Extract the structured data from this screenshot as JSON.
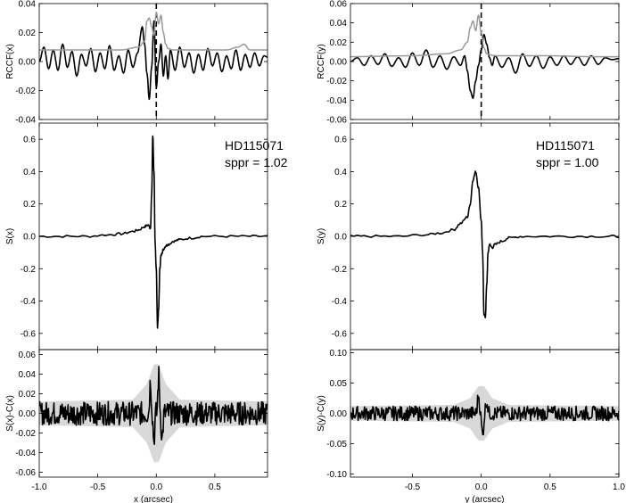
{
  "chart_data": [
    {
      "type": "line",
      "panel": "left-top",
      "ylabel": "RCCF(x)",
      "ylim": [
        -0.04,
        0.04
      ],
      "yticks": [
        "0.04",
        "0.02",
        "0.00",
        "-0.02",
        "-0.04"
      ],
      "xlim": [
        -1.0,
        0.95
      ],
      "vline_x": 0.0,
      "series": [
        {
          "values_kind": "black",
          "color": "#000000",
          "x": [
            -1.0,
            -0.96,
            -0.92,
            -0.88,
            -0.84,
            -0.8,
            -0.76,
            -0.72,
            -0.68,
            -0.64,
            -0.6,
            -0.56,
            -0.52,
            -0.48,
            -0.44,
            -0.4,
            -0.36,
            -0.32,
            -0.28,
            -0.24,
            -0.2,
            -0.16,
            -0.12,
            -0.1,
            -0.08,
            -0.06,
            -0.04,
            -0.02,
            0.0,
            0.02,
            0.04,
            0.06,
            0.08,
            0.1,
            0.12,
            0.16,
            0.2,
            0.24,
            0.28,
            0.32,
            0.36,
            0.4,
            0.44,
            0.48,
            0.52,
            0.56,
            0.6,
            0.64,
            0.68,
            0.72,
            0.76,
            0.8,
            0.84,
            0.88,
            0.92,
            0.95
          ],
          "y": [
            0.0,
            0.01,
            -0.005,
            0.008,
            -0.006,
            0.012,
            -0.004,
            0.007,
            -0.01,
            0.005,
            -0.003,
            0.009,
            -0.007,
            0.006,
            -0.005,
            0.011,
            -0.006,
            0.004,
            -0.008,
            0.008,
            -0.004,
            0.006,
            0.024,
            0.012,
            -0.008,
            -0.026,
            -0.004,
            0.028,
            -0.018,
            0.0,
            0.012,
            -0.01,
            0.004,
            -0.012,
            0.008,
            -0.006,
            0.01,
            -0.004,
            0.006,
            -0.008,
            0.005,
            -0.006,
            0.009,
            -0.003,
            0.006,
            -0.007,
            0.004,
            -0.005,
            0.008,
            -0.006,
            0.005,
            -0.004,
            0.006,
            -0.003,
            0.004,
            0.003
          ]
        },
        {
          "values_kind": "gray",
          "color": "#9a9a9a",
          "x": [
            -1.0,
            -0.6,
            -0.3,
            -0.15,
            -0.1,
            -0.08,
            -0.06,
            -0.04,
            -0.02,
            0.0,
            0.02,
            0.04,
            0.06,
            0.08,
            0.1,
            0.14,
            0.2,
            0.4,
            0.6,
            0.7,
            0.75,
            0.8,
            0.95
          ],
          "y": [
            0.008,
            0.008,
            0.008,
            0.01,
            0.014,
            0.028,
            0.03,
            0.024,
            0.018,
            0.034,
            0.026,
            0.032,
            0.02,
            0.012,
            0.009,
            0.008,
            0.008,
            0.008,
            0.008,
            0.01,
            0.012,
            0.008,
            0.008
          ]
        }
      ]
    },
    {
      "type": "line",
      "panel": "right-top",
      "ylabel": "RCCF(y)",
      "ylim": [
        -0.06,
        0.06
      ],
      "yticks": [
        "0.06",
        "0.04",
        "0.02",
        "0.00",
        "-0.02",
        "-0.04",
        "-0.06"
      ],
      "xlim": [
        -0.95,
        1.0
      ],
      "vline_x": 0.0,
      "series": [
        {
          "values_kind": "black",
          "color": "#000000",
          "x": [
            -0.95,
            -0.9,
            -0.85,
            -0.8,
            -0.75,
            -0.7,
            -0.65,
            -0.6,
            -0.55,
            -0.5,
            -0.45,
            -0.4,
            -0.35,
            -0.3,
            -0.25,
            -0.2,
            -0.15,
            -0.12,
            -0.1,
            -0.08,
            -0.06,
            -0.04,
            -0.02,
            0.0,
            0.02,
            0.04,
            0.06,
            0.08,
            0.1,
            0.15,
            0.2,
            0.25,
            0.3,
            0.35,
            0.4,
            0.45,
            0.5,
            0.55,
            0.6,
            0.65,
            0.7,
            0.75,
            0.8,
            0.85,
            0.9,
            0.95,
            1.0
          ],
          "y": [
            0.0,
            0.004,
            -0.004,
            0.006,
            -0.003,
            0.008,
            -0.005,
            0.004,
            -0.006,
            0.009,
            -0.004,
            0.012,
            -0.006,
            0.006,
            -0.008,
            0.005,
            -0.004,
            0.006,
            -0.01,
            -0.03,
            -0.038,
            -0.02,
            -0.004,
            0.012,
            0.028,
            0.018,
            0.004,
            -0.004,
            0.006,
            -0.006,
            0.004,
            -0.012,
            0.008,
            -0.005,
            0.006,
            -0.007,
            0.005,
            -0.004,
            0.006,
            -0.003,
            0.005,
            -0.004,
            0.006,
            -0.003,
            0.004,
            0.002,
            0.003
          ]
        },
        {
          "values_kind": "gray",
          "color": "#9a9a9a",
          "x": [
            -0.95,
            -0.5,
            -0.25,
            -0.15,
            -0.1,
            -0.08,
            -0.06,
            -0.04,
            -0.02,
            0.0,
            0.02,
            0.04,
            0.06,
            0.1,
            0.2,
            0.5,
            0.8,
            1.0
          ],
          "y": [
            0.005,
            0.006,
            0.008,
            0.012,
            0.02,
            0.035,
            0.042,
            0.032,
            0.048,
            0.03,
            0.014,
            0.008,
            0.007,
            0.006,
            0.006,
            0.006,
            0.005,
            0.005
          ]
        }
      ]
    },
    {
      "type": "line",
      "panel": "left-middle",
      "ylabel": "S(x)",
      "annotation_lines": [
        "HD115071",
        "sppr = 1.02"
      ],
      "ylim": [
        -0.7,
        0.7
      ],
      "yticks": [
        "0.6",
        "0.4",
        "0.2",
        "0.0",
        "-0.2",
        "-0.4",
        "-0.6"
      ],
      "xlim": [
        -1.0,
        0.95
      ],
      "series": [
        {
          "color": "#000000",
          "x": [
            -1.0,
            -0.8,
            -0.6,
            -0.4,
            -0.3,
            -0.2,
            -0.15,
            -0.1,
            -0.07,
            -0.05,
            -0.04,
            -0.03,
            -0.02,
            -0.01,
            0.0,
            0.01,
            0.02,
            0.03,
            0.04,
            0.05,
            0.06,
            0.08,
            0.1,
            0.15,
            0.2,
            0.3,
            0.4,
            0.6,
            0.8,
            0.95
          ],
          "y": [
            0.0,
            0.0,
            0.0,
            0.01,
            0.015,
            0.03,
            0.04,
            0.06,
            0.07,
            0.05,
            0.25,
            0.62,
            0.4,
            -0.05,
            -0.2,
            -0.56,
            -0.45,
            -0.2,
            -0.12,
            -0.1,
            -0.08,
            -0.06,
            -0.05,
            -0.03,
            -0.02,
            -0.01,
            0.0,
            0.0,
            0.0,
            0.0
          ]
        }
      ]
    },
    {
      "type": "line",
      "panel": "right-middle",
      "ylabel": "S(y)",
      "annotation_lines": [
        "HD115071",
        "sppr = 1.00"
      ],
      "ylim": [
        -0.7,
        0.7
      ],
      "yticks": [
        "0.6",
        "0.4",
        "0.2",
        "0.0",
        "-0.2",
        "-0.4",
        "-0.6"
      ],
      "xlim": [
        -0.95,
        1.0
      ],
      "series": [
        {
          "color": "#000000",
          "x": [
            -0.95,
            -0.8,
            -0.6,
            -0.4,
            -0.3,
            -0.2,
            -0.15,
            -0.1,
            -0.08,
            -0.06,
            -0.04,
            -0.02,
            0.0,
            0.01,
            0.02,
            0.03,
            0.04,
            0.05,
            0.06,
            0.08,
            0.1,
            0.15,
            0.2,
            0.3,
            0.5,
            0.7,
            0.9,
            1.0
          ],
          "y": [
            0.0,
            0.0,
            0.0,
            0.01,
            0.02,
            0.04,
            0.08,
            0.12,
            0.2,
            0.35,
            0.4,
            0.3,
            0.1,
            -0.1,
            -0.48,
            -0.5,
            -0.3,
            -0.1,
            -0.05,
            -0.07,
            -0.05,
            -0.03,
            -0.01,
            0.0,
            0.0,
            0.0,
            0.0,
            0.0
          ]
        }
      ]
    },
    {
      "type": "line",
      "panel": "left-bottom",
      "ylabel": "S(x)-C(x)",
      "xlabel": "x (arcsec)",
      "ylim": [
        -0.065,
        0.065
      ],
      "yticks": [
        "0.06",
        "0.04",
        "0.02",
        "0.00",
        "-0.02",
        "-0.04",
        "-0.06"
      ],
      "xticks": [
        "-1.0",
        "-0.5",
        "0.0",
        "0.5"
      ],
      "xlim": [
        -1.0,
        0.95
      ],
      "band_color": "#d8d8d8",
      "band_halfwidth": [
        {
          "x": -1.0,
          "w": 0.012
        },
        {
          "x": -0.2,
          "w": 0.014
        },
        {
          "x": -0.08,
          "w": 0.03
        },
        {
          "x": -0.02,
          "w": 0.05
        },
        {
          "x": 0.02,
          "w": 0.05
        },
        {
          "x": 0.08,
          "w": 0.03
        },
        {
          "x": 0.2,
          "w": 0.014
        },
        {
          "x": 0.95,
          "w": 0.012
        }
      ],
      "series": [
        {
          "color": "#000000",
          "noise_amplitude": 0.012,
          "spikes": [
            {
              "x": -0.05,
              "y": 0.036
            },
            {
              "x": -0.02,
              "y": -0.03
            },
            {
              "x": 0.02,
              "y": 0.042
            },
            {
              "x": 0.05,
              "y": -0.028
            }
          ]
        }
      ]
    },
    {
      "type": "line",
      "panel": "right-bottom",
      "ylabel": "S(y)-C(y)",
      "xlabel": "y (arcsec)",
      "ylim": [
        -0.105,
        0.105
      ],
      "yticks": [
        "0.10",
        "0.05",
        "0.00",
        "-0.05",
        "-0.10"
      ],
      "xticks": [
        "-0.5",
        "0.0",
        "0.5",
        "1.0"
      ],
      "xlim": [
        -0.95,
        1.0
      ],
      "band_color": "#d8d8d8",
      "band_halfwidth": [
        {
          "x": -0.95,
          "w": 0.012
        },
        {
          "x": -0.2,
          "w": 0.014
        },
        {
          "x": -0.08,
          "w": 0.025
        },
        {
          "x": -0.02,
          "w": 0.045
        },
        {
          "x": 0.02,
          "w": 0.045
        },
        {
          "x": 0.08,
          "w": 0.025
        },
        {
          "x": 0.2,
          "w": 0.014
        },
        {
          "x": 1.0,
          "w": 0.012
        }
      ],
      "series": [
        {
          "color": "#000000",
          "noise_amplitude": 0.012,
          "spikes": [
            {
              "x": -0.02,
              "y": 0.034
            },
            {
              "x": 0.01,
              "y": -0.04
            },
            {
              "x": 0.04,
              "y": 0.024
            }
          ]
        }
      ]
    }
  ]
}
